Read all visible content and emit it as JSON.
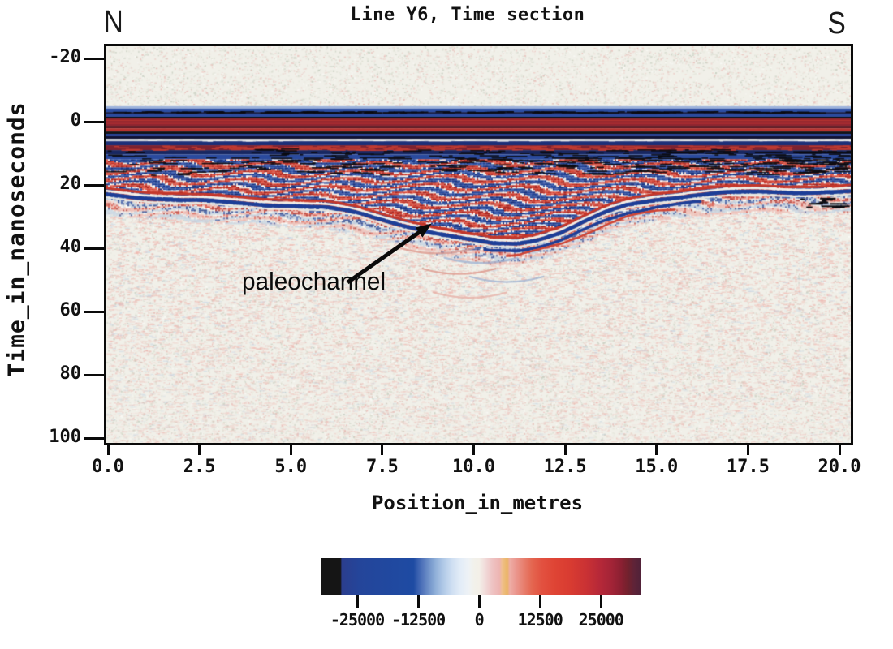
{
  "chart_data": {
    "type": "heatmap",
    "title": "Line Y6, Time section",
    "xlabel": "Position_in_metres",
    "ylabel": "Time_in_nanoseconds",
    "xlim": [
      0.0,
      20.0
    ],
    "ylim": [
      -24,
      102
    ],
    "x_ticks": [
      0.0,
      2.5,
      5.0,
      7.5,
      10.0,
      12.5,
      15.0,
      17.5,
      20.0
    ],
    "y_ticks": [
      -20,
      0,
      20,
      40,
      60,
      80,
      100
    ],
    "orientation": {
      "left": "N",
      "right": "S"
    },
    "annotation": {
      "text": "paleochannel",
      "arrow_tail_m_ns": [
        6.55,
        50.8
      ],
      "arrow_tip_m_ns": [
        8.85,
        32.2
      ]
    },
    "direct_wave_bands": [
      {
        "t0": -4.9,
        "t1": -4.15,
        "color": "#9db3dc"
      },
      {
        "t0": -4.15,
        "t1": -3.05,
        "color": "#2c4fa5"
      },
      {
        "t0": -3.05,
        "t1": -2.35,
        "color": "#151f4c"
      },
      {
        "t0": -2.35,
        "t1": -1.55,
        "color": "#2a4ba0"
      },
      {
        "t0": -1.55,
        "t1": -1.05,
        "color": "#0d0d16"
      },
      {
        "t0": -1.05,
        "t1": 1.3,
        "color": "#8f2630"
      },
      {
        "t0": -0.55,
        "t1": -0.2,
        "color": "#b5342f"
      },
      {
        "t0": 0.35,
        "t1": 0.75,
        "color": "#a92e31"
      },
      {
        "t0": 1.3,
        "t1": 2.1,
        "color": "#5c1a24"
      },
      {
        "t0": 2.1,
        "t1": 3.1,
        "color": "#b5322f"
      },
      {
        "t0": 3.1,
        "t1": 3.85,
        "color": "#131316"
      },
      {
        "t0": 3.85,
        "t1": 4.6,
        "color": "#27439a"
      },
      {
        "t0": 4.6,
        "t1": 5.4,
        "color": "#101233"
      },
      {
        "t0": 5.4,
        "t1": 6.2,
        "color": "#ccd1d9"
      },
      {
        "t0": 6.2,
        "t1": 7.45,
        "color": "#1c2f78"
      },
      {
        "t0": 7.45,
        "t1": 9.0,
        "color": "#7d2230"
      },
      {
        "t0": 9.0,
        "t1": 10.35,
        "color": "#182761"
      },
      {
        "t0": 10.35,
        "t1": 11.9,
        "color": "#2a4a9e"
      }
    ],
    "paleochannel_base_ns": [
      [
        0,
        22.5
      ],
      [
        1,
        23.5
      ],
      [
        2,
        24.5
      ],
      [
        3,
        25.0
      ],
      [
        4,
        25.5
      ],
      [
        5,
        26.0
      ],
      [
        6,
        27.0
      ],
      [
        6.8,
        28.5
      ],
      [
        7.5,
        30.5
      ],
      [
        8.2,
        32.5
      ],
      [
        9,
        35.0
      ],
      [
        9.8,
        37.0
      ],
      [
        10.5,
        38.2
      ],
      [
        11.2,
        38.0
      ],
      [
        11.8,
        36.5
      ],
      [
        12.4,
        34.5
      ],
      [
        13,
        31.5
      ],
      [
        13.6,
        28.5
      ],
      [
        14.2,
        26.0
      ],
      [
        15,
        24.0
      ],
      [
        16,
        22.8
      ],
      [
        17,
        22.2
      ],
      [
        18,
        21.8
      ],
      [
        19,
        21.8
      ],
      [
        20,
        21.8
      ]
    ],
    "palette": {
      "background": "#f1f0e9",
      "speckles": [
        "#e8c3bd",
        "#dcded1",
        "#ccd2c5",
        "#f9f9f5",
        "#e6e7dc",
        "#eed0ca"
      ],
      "wiggle_red": [
        "#c23328",
        "#d64434",
        "#a8241f",
        "#e0584a"
      ],
      "wiggle_blue": [
        "#274a9e",
        "#1c3f94",
        "#3a5cb0",
        "#16307e"
      ],
      "wiggle_pale": [
        "#f4f2ec",
        "#dde6f1",
        "#f5d9d3",
        "#ffffff"
      ],
      "deep_pink": "#efb3ab",
      "deep_blue": "#bccfe2",
      "reflector_blue": "#1d3e97",
      "reflector_red": "#c4372b",
      "arrow_color": "#0a0a0a"
    },
    "colorbar": {
      "ticks": [
        -25000,
        -12500,
        0,
        12500,
        25000
      ],
      "tick_labels": [
        "-25000",
        "-12500",
        "0",
        "12500",
        "25000"
      ],
      "gradient": [
        {
          "pos": 0.0,
          "color": "#151515"
        },
        {
          "pos": 0.062,
          "color": "#151515"
        },
        {
          "pos": 0.066,
          "color": "#2b3e8e"
        },
        {
          "pos": 0.12,
          "color": "#24459a"
        },
        {
          "pos": 0.29,
          "color": "#1e4ba3"
        },
        {
          "pos": 0.305,
          "color": "#3c63b1"
        },
        {
          "pos": 0.32,
          "color": "#5578bd"
        },
        {
          "pos": 0.34,
          "color": "#7496cb"
        },
        {
          "pos": 0.36,
          "color": "#93b2da"
        },
        {
          "pos": 0.385,
          "color": "#b3cbe8"
        },
        {
          "pos": 0.41,
          "color": "#cfdff2"
        },
        {
          "pos": 0.435,
          "color": "#e2ecf7"
        },
        {
          "pos": 0.46,
          "color": "#eef2f6"
        },
        {
          "pos": 0.48,
          "color": "#f2f1ea"
        },
        {
          "pos": 0.495,
          "color": "#f3efe8"
        },
        {
          "pos": 0.515,
          "color": "#f1d9d8"
        },
        {
          "pos": 0.535,
          "color": "#eec3c3"
        },
        {
          "pos": 0.558,
          "color": "#edb4b2"
        },
        {
          "pos": 0.566,
          "color": "#f0c08d"
        },
        {
          "pos": 0.582,
          "color": "#eab564"
        },
        {
          "pos": 0.59,
          "color": "#eeada6"
        },
        {
          "pos": 0.61,
          "color": "#ea968d"
        },
        {
          "pos": 0.635,
          "color": "#e77d6c"
        },
        {
          "pos": 0.66,
          "color": "#e4654f"
        },
        {
          "pos": 0.69,
          "color": "#e25140"
        },
        {
          "pos": 0.73,
          "color": "#df4434"
        },
        {
          "pos": 0.78,
          "color": "#d83b31"
        },
        {
          "pos": 0.83,
          "color": "#c93134"
        },
        {
          "pos": 0.87,
          "color": "#b62838"
        },
        {
          "pos": 0.905,
          "color": "#a42437"
        },
        {
          "pos": 0.935,
          "color": "#8d2032"
        },
        {
          "pos": 0.958,
          "color": "#72212d"
        },
        {
          "pos": 0.978,
          "color": "#5e2338"
        },
        {
          "pos": 1.0,
          "color": "#4f2239"
        }
      ]
    }
  }
}
